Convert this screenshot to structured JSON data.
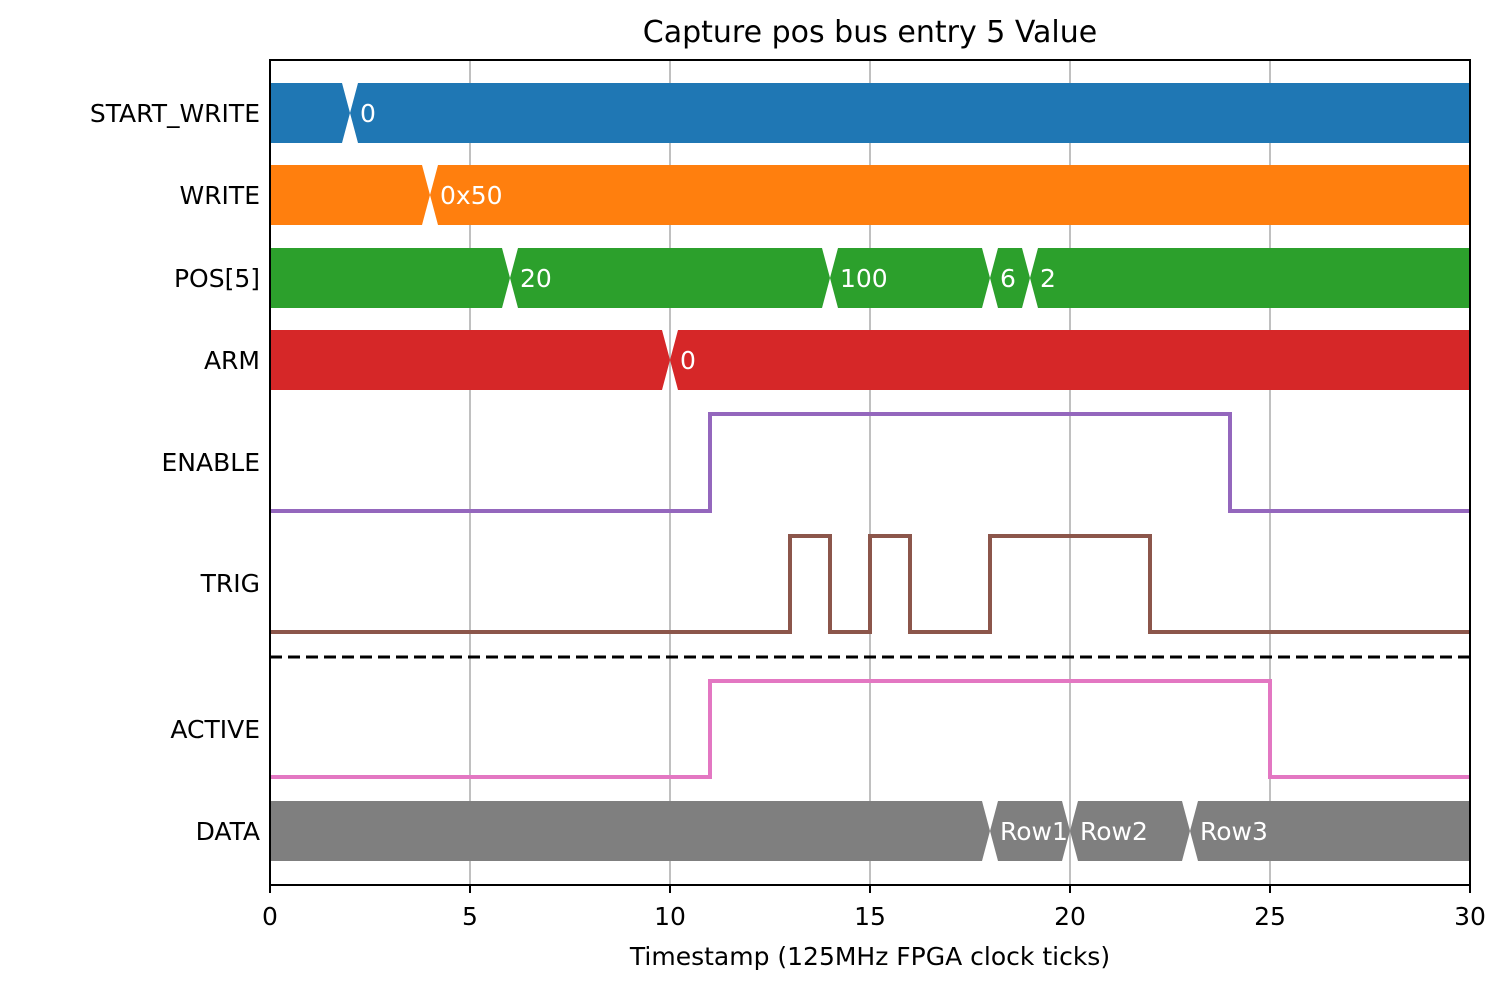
{
  "chart_data": {
    "type": "timing-diagram",
    "title": "Capture pos bus entry 5 Value",
    "xlabel": "Timestamp (125MHz FPGA clock ticks)",
    "ylabel": "",
    "xlim": [
      0,
      30
    ],
    "xticks": [
      0,
      5,
      10,
      15,
      20,
      25,
      30
    ],
    "grid": "vertical",
    "signals": [
      {
        "name": "START_WRITE",
        "kind": "bus",
        "color": "#1f77b4",
        "segments": [
          {
            "start": 0,
            "end": 2,
            "label": ""
          },
          {
            "start": 2,
            "end": 30,
            "label": "0"
          }
        ]
      },
      {
        "name": "WRITE",
        "kind": "bus",
        "color": "#ff7f0e",
        "segments": [
          {
            "start": 0,
            "end": 4,
            "label": ""
          },
          {
            "start": 4,
            "end": 30,
            "label": "0x50"
          }
        ]
      },
      {
        "name": "POS[5]",
        "kind": "bus",
        "color": "#2ca02c",
        "segments": [
          {
            "start": 0,
            "end": 6,
            "label": ""
          },
          {
            "start": 6,
            "end": 14,
            "label": "20"
          },
          {
            "start": 14,
            "end": 18,
            "label": "100"
          },
          {
            "start": 18,
            "end": 19,
            "label": "6"
          },
          {
            "start": 19,
            "end": 30,
            "label": "2"
          }
        ]
      },
      {
        "name": "ARM",
        "kind": "bus",
        "color": "#d62728",
        "segments": [
          {
            "start": 0,
            "end": 10,
            "label": ""
          },
          {
            "start": 10,
            "end": 30,
            "label": "0"
          }
        ]
      },
      {
        "name": "ENABLE",
        "kind": "bit",
        "color": "#9467bd",
        "steps": [
          [
            0,
            0
          ],
          [
            11,
            1
          ],
          [
            24,
            0
          ],
          [
            30,
            0
          ]
        ]
      },
      {
        "name": "TRIG",
        "kind": "bit",
        "color": "#8c564b",
        "steps": [
          [
            0,
            0
          ],
          [
            13,
            1
          ],
          [
            14,
            0
          ],
          [
            15,
            1
          ],
          [
            16,
            0
          ],
          [
            18,
            1
          ],
          [
            22,
            0
          ],
          [
            30,
            0
          ]
        ]
      },
      {
        "name": "ACTIVE",
        "kind": "bit",
        "color": "#e377c2",
        "separator_above": true,
        "steps": [
          [
            0,
            0
          ],
          [
            11,
            1
          ],
          [
            25,
            0
          ],
          [
            30,
            0
          ]
        ]
      },
      {
        "name": "DATA",
        "kind": "bus",
        "color": "#7f7f7f",
        "segments": [
          {
            "start": 0,
            "end": 18,
            "label": ""
          },
          {
            "start": 18,
            "end": 20,
            "label": "Row1"
          },
          {
            "start": 20,
            "end": 23,
            "label": "Row2"
          },
          {
            "start": 23,
            "end": 30,
            "label": "Row3"
          }
        ]
      }
    ]
  }
}
